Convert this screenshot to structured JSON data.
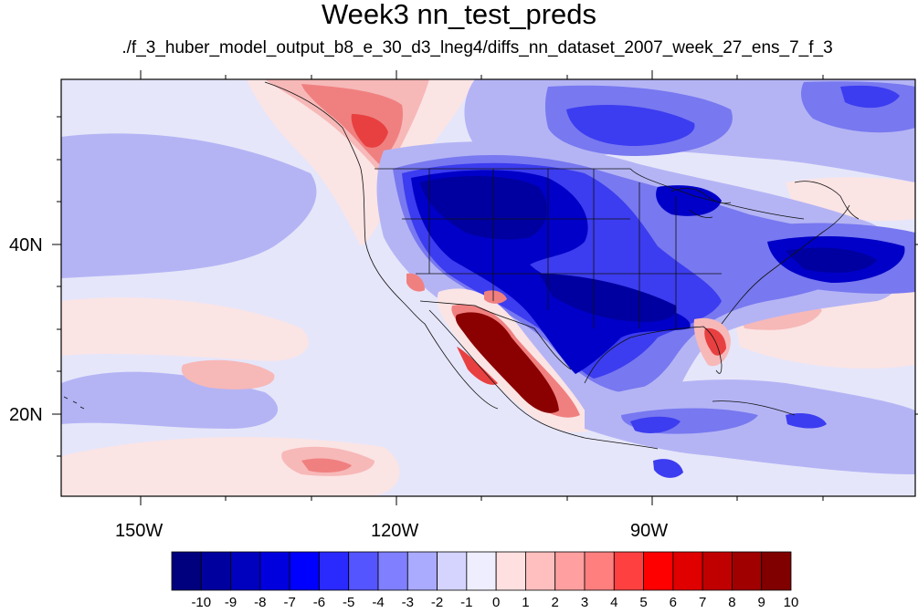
{
  "title": "Week3 nn_test_preds",
  "subtitle": "./f_3_huber_model_output_b8_e_30_d3_lneg4/diffs_nn_dataset_2007_week_27_ens_7_f_3",
  "axes": {
    "lat_labels": [
      "40N",
      "20N"
    ],
    "lon_labels": [
      "150W",
      "120W",
      "90W"
    ]
  },
  "colorbar": {
    "labels": [
      "-10",
      "-9",
      "-8",
      "-7",
      "-6",
      "-5",
      "-4",
      "-3",
      "-2",
      "-1",
      "0",
      "1",
      "2",
      "3",
      "4",
      "5",
      "6",
      "7",
      "8",
      "9",
      "10"
    ],
    "colors": [
      "#00007f",
      "#00009f",
      "#0000bf",
      "#0000df",
      "#0000ff",
      "#2a2aff",
      "#5555ff",
      "#7f7fff",
      "#aaaaff",
      "#d4d4ff",
      "#eeeeff",
      "#ffe0e0",
      "#ffbfbf",
      "#ff9f9f",
      "#ff7f7f",
      "#ff4040",
      "#ff0000",
      "#e00000",
      "#c00000",
      "#a00000",
      "#800000"
    ]
  },
  "map_colors": {
    "pale_blue": "#e6e6fa",
    "light_blue": "#b4b4f5",
    "mid_blue": "#7878f0",
    "blue": "#3c3cf0",
    "dark_blue": "#0000c8",
    "navy": "#0000a0",
    "pale_red": "#fbe4e4",
    "light_red": "#f7b8b8",
    "mid_red": "#f08080",
    "red": "#e84040",
    "dark_red": "#8b0000"
  }
}
